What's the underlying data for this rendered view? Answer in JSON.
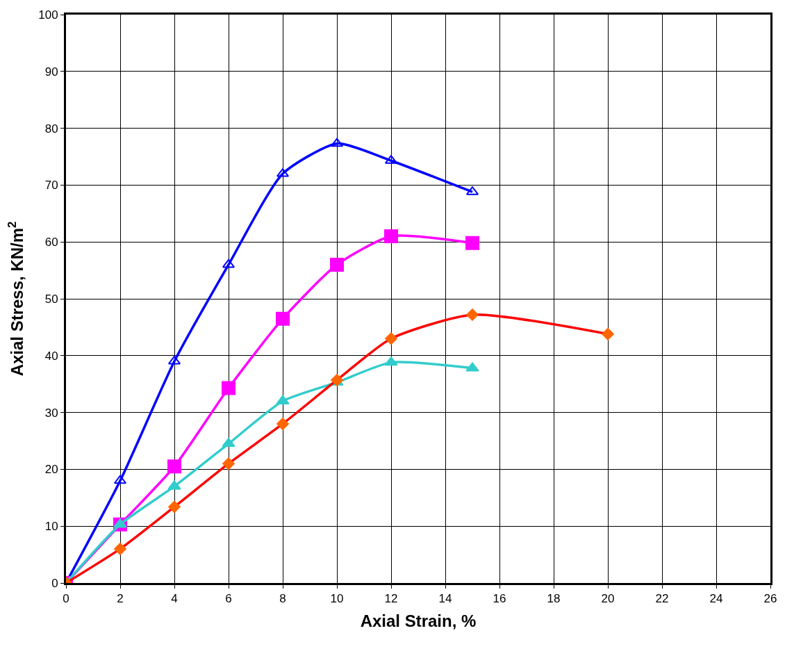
{
  "chart_data": {
    "type": "line",
    "xlabel": "Axial Strain, %",
    "ylabel": "Axial Stress, KN/m$^{2}$",
    "xlim": [
      0,
      26
    ],
    "xticks": [
      0,
      2,
      4,
      6,
      8,
      10,
      12,
      14,
      16,
      18,
      20,
      22,
      24,
      26
    ],
    "ylim": [
      0,
      100
    ],
    "yticks": [
      0,
      10,
      20,
      30,
      40,
      50,
      60,
      70,
      80,
      90,
      100
    ],
    "grid": true,
    "series": [
      {
        "color": "#0000ff",
        "marker": "triangle-open",
        "x": [
          0,
          2,
          4,
          6,
          8,
          10,
          12,
          15
        ],
        "values": [
          0,
          18,
          39,
          56,
          72,
          77.3,
          74.3,
          68.8
        ]
      },
      {
        "color": "#ff00ff",
        "marker": "square",
        "x": [
          0,
          2,
          4,
          6,
          8,
          10,
          12,
          15
        ],
        "values": [
          0,
          10.3,
          20.5,
          34.3,
          46.5,
          56,
          61,
          59.8
        ]
      },
      {
        "color": "#33cccc",
        "marker": "triangle",
        "x": [
          0,
          2,
          4,
          6,
          8,
          10,
          12,
          15
        ],
        "values": [
          0,
          10.3,
          17,
          24.5,
          32,
          35.3,
          38.8,
          37.8
        ]
      },
      {
        "color": "#ff0000",
        "colors": [
          "#ff6600",
          "#ff6600",
          "#ff6600",
          "#ff6600",
          "#ff6600",
          "#ff6600",
          "#ff6600",
          "#ff6600",
          "#ff6600"
        ],
        "marker": "diamond",
        "x": [
          0,
          2,
          4,
          6,
          8,
          10,
          12,
          15,
          20
        ],
        "values": [
          0,
          6,
          13.4,
          21,
          28,
          35.7,
          43,
          47.2,
          43.8
        ]
      }
    ]
  }
}
